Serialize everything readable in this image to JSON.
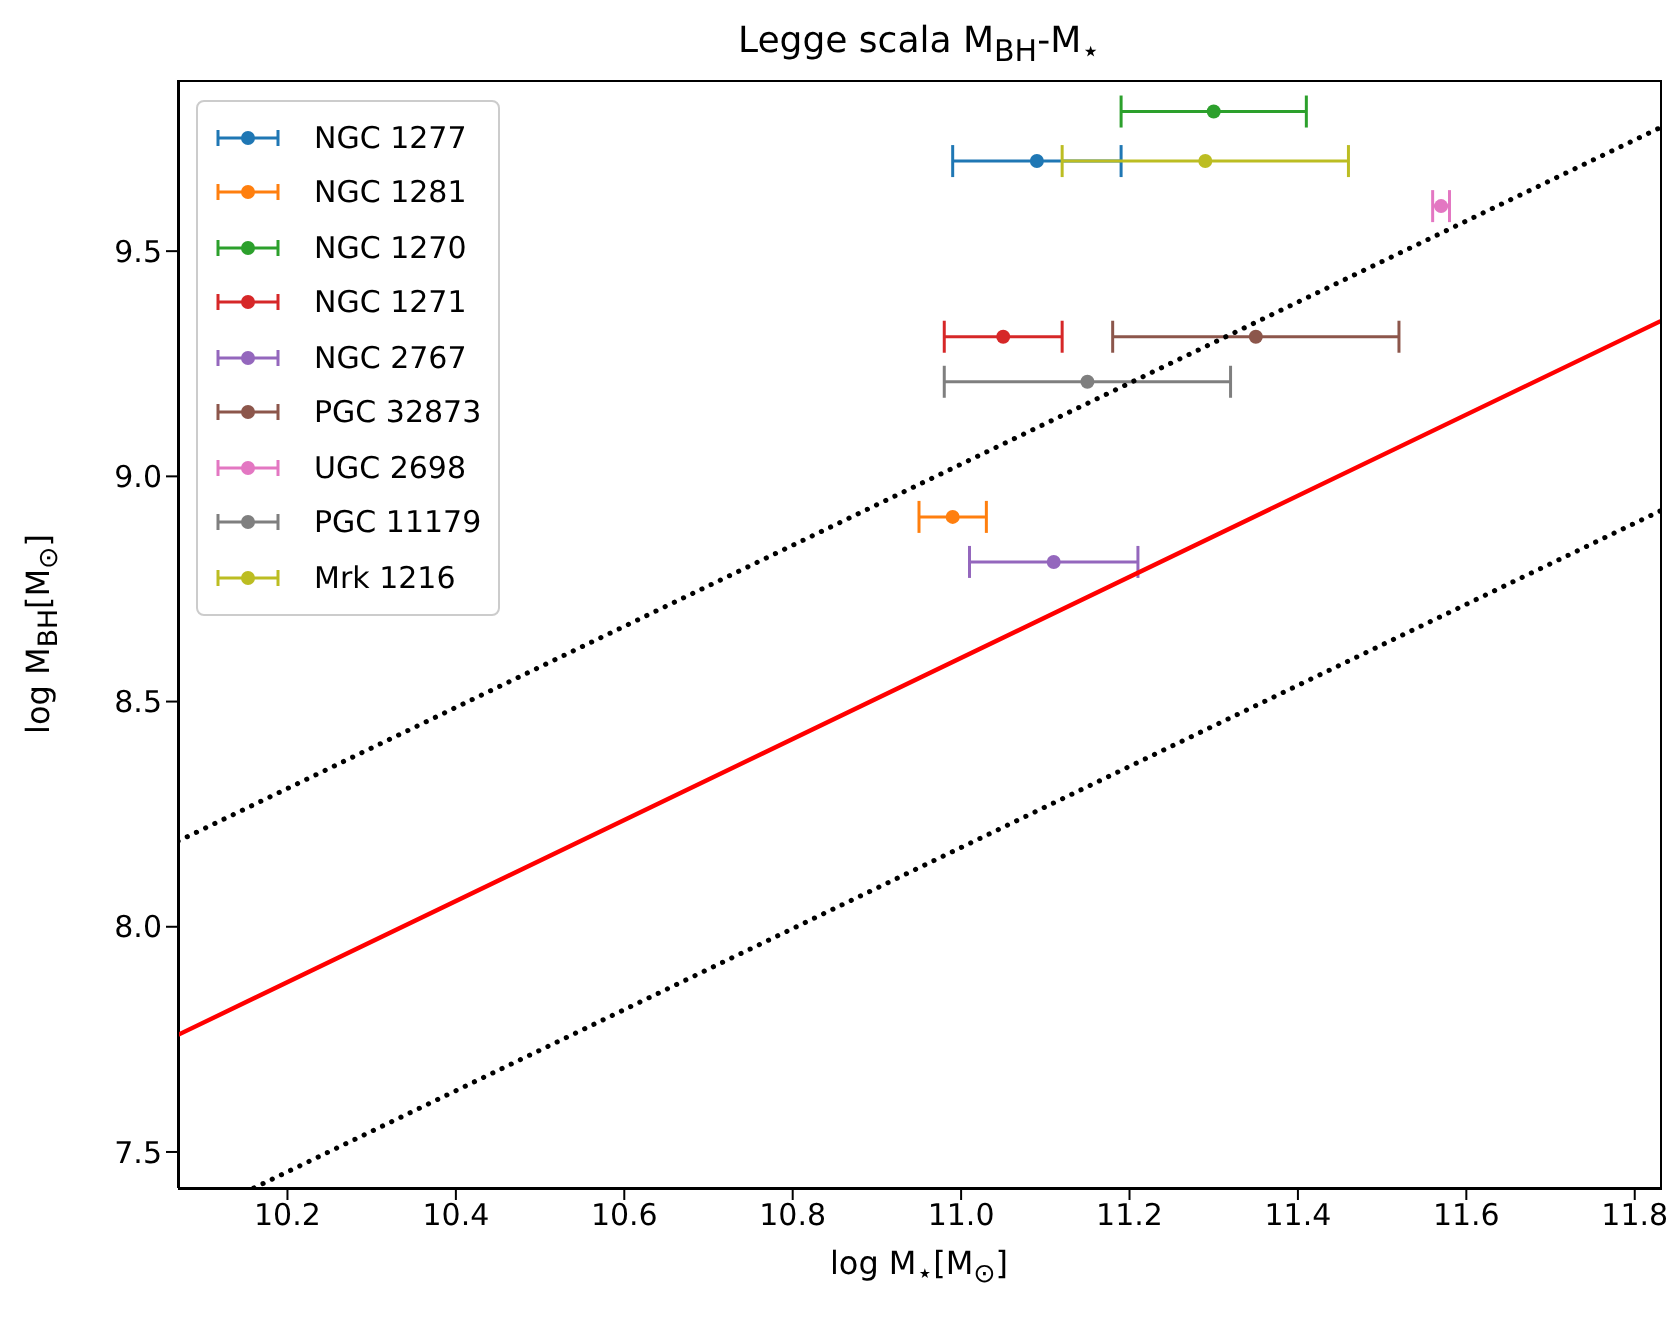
{
  "chart_data": {
    "type": "scatter",
    "title": "Legge scala M$_{BH}$-M$_{⋆}$",
    "xlabel": "log M$_{⋆}$[M$_{⊙}$]",
    "ylabel": "log M$_{BH}$[M$_{⊙}$]",
    "xlim": [
      10.07,
      11.83
    ],
    "ylim": [
      7.42,
      9.88
    ],
    "xticks": [
      {
        "value": 10.2,
        "label": "10.2"
      },
      {
        "value": 10.4,
        "label": "10.4"
      },
      {
        "value": 10.6,
        "label": "10.6"
      },
      {
        "value": 10.8,
        "label": "10.8"
      },
      {
        "value": 11,
        "label": "11.0"
      },
      {
        "value": 11.2,
        "label": "11.2"
      },
      {
        "value": 11.4,
        "label": "11.4"
      },
      {
        "value": 11.6,
        "label": "11.6"
      },
      {
        "value": 11.8,
        "label": "11.8"
      }
    ],
    "yticks": [
      7.5,
      {
        "value": 8,
        "label": "8.0"
      },
      8.5,
      {
        "value": 9,
        "label": "9.0"
      },
      9.5
    ],
    "grid": false,
    "legend": "top left",
    "marker": "circle",
    "series": [
      {
        "name": "NGC 1277",
        "color": "#1f77b4",
        "x": [
          11.09
        ],
        "values": [
          9.7
        ],
        "xerrors": [
          0.1
        ]
      },
      {
        "name": "NGC 1281",
        "color": "#ff7f0e",
        "x": [
          10.99
        ],
        "values": [
          8.91
        ],
        "xerrors": [
          0.04
        ]
      },
      {
        "name": "NGC 1270",
        "color": "#2ca02c",
        "x": [
          11.3
        ],
        "values": [
          9.81
        ],
        "xerrors": [
          0.11
        ]
      },
      {
        "name": "NGC 1271",
        "color": "#d62728",
        "x": [
          11.05
        ],
        "values": [
          9.31
        ],
        "xerrors": [
          0.07
        ]
      },
      {
        "name": "NGC 2767",
        "color": "#9467bd",
        "x": [
          11.11
        ],
        "values": [
          8.81
        ],
        "xerrors": [
          0.1
        ]
      },
      {
        "name": "PGC 32873",
        "color": "#8c564b",
        "x": [
          11.35
        ],
        "values": [
          9.31
        ],
        "xerrors": [
          0.17
        ]
      },
      {
        "name": "UGC 2698",
        "color": "#e377c2",
        "x": [
          11.57
        ],
        "values": [
          9.6
        ],
        "xerrors": [
          0.01
        ]
      },
      {
        "name": "PGC 11179",
        "color": "#7f7f7f",
        "x": [
          11.15
        ],
        "values": [
          9.21
        ],
        "xerrors": [
          0.17
        ]
      },
      {
        "name": "Mrk 1216",
        "color": "#bcbd22",
        "x": [
          11.29
        ],
        "values": [
          9.7
        ],
        "xerrors": [
          0.17
        ]
      },
      {
        "type": "line",
        "color": "#ff0000",
        "x": [
          10.07,
          11.83
        ],
        "values": [
          7.76,
          9.344
        ],
        "line_style": "solid",
        "marker": "none"
      },
      {
        "type": "line",
        "color": "#000000",
        "x": [
          10.07,
          11.83
        ],
        "values": [
          8.19,
          9.774
        ],
        "line_style": "dotted",
        "marker": "none"
      },
      {
        "type": "line",
        "color": "#000000",
        "x": [
          10.16,
          11.83
        ],
        "values": [
          7.42,
          8.923
        ],
        "line_style": "dotted",
        "marker": "none"
      }
    ]
  }
}
